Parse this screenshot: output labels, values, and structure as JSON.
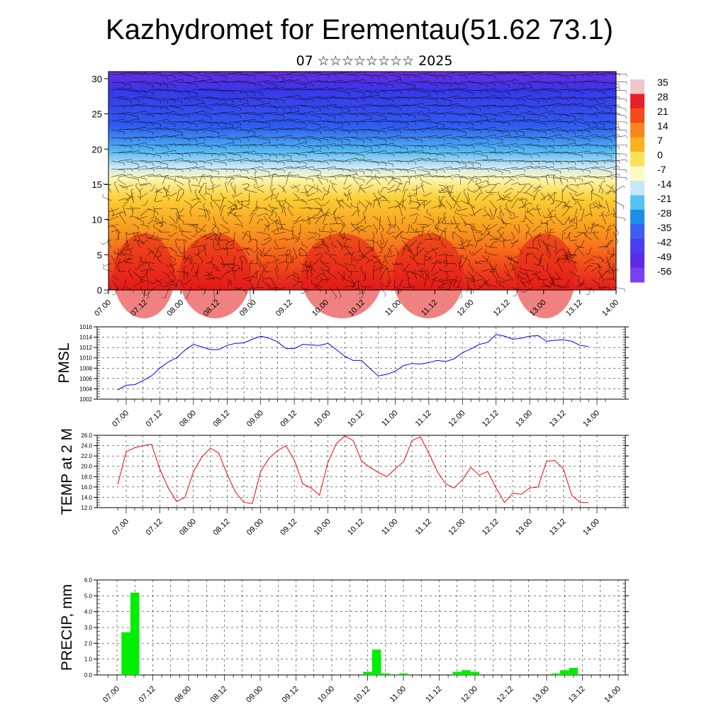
{
  "title": "Kazhydromet for Erementau(51.62 73.1)",
  "subtitle": "07 ☆☆☆☆☆☆☆☆ 2025",
  "chart_data": [
    {
      "type": "heatmap",
      "title": "Kazhydromet for Erementau(51.62 73.1)",
      "subtitle": "07 ☆☆☆☆☆☆☆☆ 2025",
      "xlabel": "",
      "ylabel": "",
      "x_ticks": [
        "07.00",
        "07.12",
        "08.00",
        "08.12",
        "09.00",
        "09.12",
        "10.00",
        "10.12",
        "11.00",
        "11.12",
        "12.00",
        "12.12",
        "13.00",
        "13.12",
        "14.00"
      ],
      "ylim": [
        0,
        31
      ],
      "y_ticks": [
        0,
        5,
        10,
        15,
        20,
        25,
        30
      ],
      "colorbar": {
        "labels": [
          "35",
          "28",
          "21",
          "14",
          "7",
          "0",
          "-7",
          "-14",
          "-21",
          "-28",
          "-35",
          "-42",
          "-49",
          "-56"
        ],
        "colors": [
          "#f2c6c8",
          "#e8202a",
          "#f44a1a",
          "#f7871c",
          "#f8b21e",
          "#fbe05a",
          "#fdfcc0",
          "#c7e7f6",
          "#57c2f0",
          "#1c8ee8",
          "#3d5ef4",
          "#4a3cf0",
          "#5a2ce8",
          "#7b3ef0"
        ]
      },
      "overlay": "wind barbs",
      "description_values": {
        "surface_temperature_range": [
          14,
          35
        ],
        "upper_temperature_range": [
          -56,
          -42
        ]
      }
    },
    {
      "type": "line",
      "ylabel": "PMSL",
      "ylim": [
        1002,
        1016
      ],
      "y_ticks": [
        "1002",
        "1004",
        "1006",
        "1008",
        "1010",
        "1012",
        "1014",
        "1016"
      ],
      "x_ticks": [
        "07.00",
        "07.12",
        "08.00",
        "08.12",
        "09.00",
        "09.12",
        "10.00",
        "10.12",
        "11.00",
        "11.12",
        "12.00",
        "12.12",
        "13.00",
        "13.12",
        "14.00"
      ],
      "hours": [
        -3,
        0,
        3,
        6,
        9,
        12,
        15,
        18,
        21,
        24,
        27,
        30,
        33,
        36,
        39,
        42,
        45,
        48,
        51,
        54,
        57,
        60,
        63,
        66,
        69,
        72,
        75,
        78,
        81,
        84,
        87,
        90,
        93,
        96,
        99,
        102,
        105,
        108,
        111,
        114,
        117,
        120,
        123,
        126,
        129,
        132,
        135,
        138,
        141,
        144,
        147,
        150,
        153,
        156,
        159,
        162,
        165
      ],
      "series": [
        {
          "color": "#0000ff",
          "values": [
            1003.8,
            1004.7,
            1004.8,
            1005.6,
            1006.5,
            1008.0,
            1009.2,
            1010.0,
            1011.5,
            1012.6,
            1012.1,
            1011.6,
            1011.6,
            1012.4,
            1012.8,
            1012.9,
            1013.6,
            1014.2,
            1013.8,
            1013.1,
            1011.8,
            1011.8,
            1012.6,
            1012.5,
            1012.4,
            1012.8,
            1011.6,
            1010.3,
            1009.5,
            1009.5,
            1007.9,
            1006.5,
            1006.8,
            1007.4,
            1008.5,
            1008.9,
            1008.8,
            1009.1,
            1009.5,
            1009.3,
            1009.8,
            1011.0,
            1011.7,
            1012.6,
            1013.0,
            1014.5,
            1014.2,
            1013.6,
            1013.8,
            1014.2,
            1014.3,
            1013.2,
            1013.4,
            1013.5,
            1013.2,
            1012.4,
            1012.2
          ]
        }
      ]
    },
    {
      "type": "line",
      "ylabel": "TEMP at 2 M",
      "ylim": [
        12,
        26
      ],
      "y_ticks": [
        "12.0",
        "14.0",
        "16.0",
        "18.0",
        "20.0",
        "22.0",
        "24.0",
        "26.0"
      ],
      "x_ticks": [
        "07.00",
        "07.12",
        "08.00",
        "08.12",
        "09.00",
        "09.12",
        "10.00",
        "10.12",
        "11.00",
        "11.12",
        "12.00",
        "12.12",
        "13.00",
        "13.12",
        "14.00"
      ],
      "hours": [
        -3,
        0,
        3,
        6,
        9,
        12,
        15,
        18,
        21,
        24,
        27,
        30,
        33,
        36,
        39,
        42,
        45,
        48,
        51,
        54,
        57,
        60,
        63,
        66,
        69,
        72,
        75,
        78,
        81,
        84,
        87,
        90,
        93,
        96,
        99,
        102,
        105,
        108,
        111,
        114,
        117,
        120,
        123,
        126,
        129,
        132,
        135,
        138,
        141,
        144,
        147,
        150,
        153,
        156,
        159,
        162,
        165
      ],
      "series": [
        {
          "color": "#ff0000",
          "values": [
            16.5,
            22.8,
            23.6,
            24.0,
            24.3,
            19.5,
            15.8,
            13.2,
            14.0,
            19.0,
            21.8,
            23.5,
            22.6,
            18.5,
            15.0,
            13.0,
            12.8,
            19.0,
            21.6,
            23.0,
            24.0,
            21.2,
            16.6,
            15.8,
            14.4,
            20.8,
            24.4,
            25.9,
            25.0,
            21.0,
            19.8,
            18.8,
            18.0,
            19.5,
            20.9,
            25.0,
            25.7,
            22.5,
            19.0,
            16.6,
            15.8,
            17.4,
            19.8,
            18.3,
            19.0,
            15.8,
            13.0,
            14.8,
            14.6,
            15.8,
            16.0,
            21.0,
            21.1,
            19.5,
            14.4,
            13.0,
            13.0
          ]
        }
      ]
    },
    {
      "type": "bar",
      "ylabel": "PRECIP, mm",
      "ylim": [
        0,
        6
      ],
      "y_ticks": [
        "0.0",
        "1.0",
        "2.0",
        "3.0",
        "4.0",
        "5.0",
        "6.0"
      ],
      "x_ticks": [
        "07.00",
        "07.12",
        "08.00",
        "08.12",
        "09.00",
        "09.12",
        "10.00",
        "10.12",
        "11.00",
        "11.12",
        "12.00",
        "12.12",
        "13.00",
        "13.12",
        "14.00"
      ],
      "bars": [
        {
          "hour": 3,
          "value": 2.7
        },
        {
          "hour": 6,
          "value": 5.2
        },
        {
          "hour": 84,
          "value": 0.2
        },
        {
          "hour": 87,
          "value": 1.6
        },
        {
          "hour": 90,
          "value": 0.1
        },
        {
          "hour": 96,
          "value": 0.1
        },
        {
          "hour": 114,
          "value": 0.2
        },
        {
          "hour": 117,
          "value": 0.3
        },
        {
          "hour": 120,
          "value": 0.2
        },
        {
          "hour": 147,
          "value": 0.1
        },
        {
          "hour": 150,
          "value": 0.3
        },
        {
          "hour": 153,
          "value": 0.45
        }
      ],
      "color": "#00ee00"
    }
  ]
}
